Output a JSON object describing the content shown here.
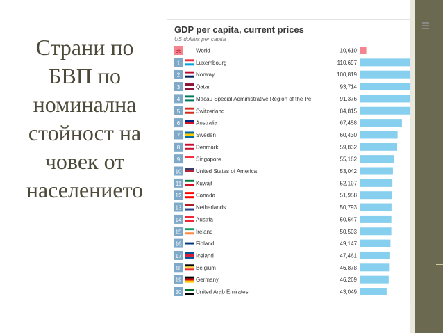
{
  "slide": {
    "title_lines": [
      "Страни по",
      "БВП по",
      "номинална",
      "стойност на",
      "човек от",
      "населението"
    ]
  },
  "chart_data": {
    "type": "bar",
    "title": "GDP per capita, current prices",
    "subtitle": "US dollars per capita",
    "highlight_color": "#f4858e",
    "bar_color": "#87cfee",
    "rows": [
      {
        "rank": "66",
        "country": "World",
        "value": 10610,
        "value_label": "10,610",
        "highlight": true
      },
      {
        "rank": "1",
        "country": "Luxembourg",
        "value": 110697,
        "value_label": "110,697"
      },
      {
        "rank": "2",
        "country": "Norway",
        "value": 100819,
        "value_label": "100,819"
      },
      {
        "rank": "3",
        "country": "Qatar",
        "value": 93714,
        "value_label": "93,714"
      },
      {
        "rank": "4",
        "country": "Macau Special Administrative Region of the Pe",
        "value": 91376,
        "value_label": "91,376"
      },
      {
        "rank": "5",
        "country": "Switzerland",
        "value": 84815,
        "value_label": "84,815"
      },
      {
        "rank": "6",
        "country": "Australia",
        "value": 67458,
        "value_label": "67,458"
      },
      {
        "rank": "7",
        "country": "Sweden",
        "value": 60430,
        "value_label": "60,430"
      },
      {
        "rank": "8",
        "country": "Denmark",
        "value": 59832,
        "value_label": "59,832"
      },
      {
        "rank": "9",
        "country": "Singapore",
        "value": 55182,
        "value_label": "55,182"
      },
      {
        "rank": "10",
        "country": "United States of America",
        "value": 53042,
        "value_label": "53,042"
      },
      {
        "rank": "11",
        "country": "Kuwait",
        "value": 52197,
        "value_label": "52,197"
      },
      {
        "rank": "12",
        "country": "Canada",
        "value": 51958,
        "value_label": "51,958"
      },
      {
        "rank": "13",
        "country": "Netherlands",
        "value": 50793,
        "value_label": "50,793"
      },
      {
        "rank": "14",
        "country": "Austria",
        "value": 50547,
        "value_label": "50,547"
      },
      {
        "rank": "15",
        "country": "Ireland",
        "value": 50503,
        "value_label": "50,503"
      },
      {
        "rank": "16",
        "country": "Finland",
        "value": 49147,
        "value_label": "49,147"
      },
      {
        "rank": "17",
        "country": "Iceland",
        "value": 47461,
        "value_label": "47,461"
      },
      {
        "rank": "18",
        "country": "Belgium",
        "value": 46878,
        "value_label": "46,878"
      },
      {
        "rank": "19",
        "country": "Germany",
        "value": 46269,
        "value_label": "46,269"
      },
      {
        "rank": "20",
        "country": "United Arab Emirates",
        "value": 43049,
        "value_label": "43,049"
      }
    ]
  }
}
